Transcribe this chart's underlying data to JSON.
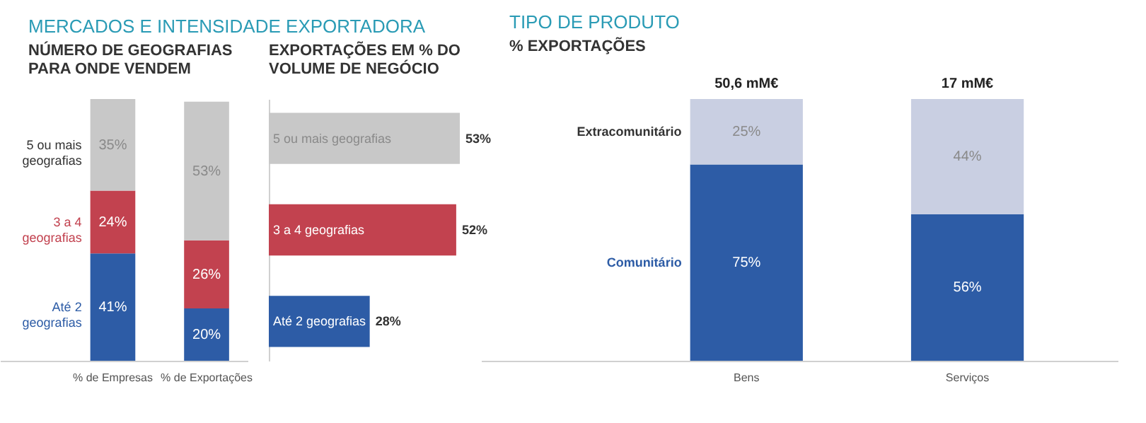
{
  "chart_data": [
    {
      "type": "bar",
      "title": "MERCADOS E INTENSIDADE EXPORTADORA",
      "subtitle": "NÚMERO DE GEOGRAFIAS PARA ONDE VENDEM",
      "categories": [
        "% de Empresas",
        "% de Exportações"
      ],
      "stacked": true,
      "series": [
        {
          "name": "Até 2 geografias",
          "color": "#2d5ca6",
          "values": [
            41,
            20
          ],
          "value_labels": [
            "41%",
            "20%"
          ]
        },
        {
          "name": "3 a 4 geografias",
          "color": "#c2424f",
          "values": [
            24,
            26
          ],
          "value_labels": [
            "24%",
            "26%"
          ]
        },
        {
          "name": "5 ou mais geografias",
          "color": "#c8c8c8",
          "values": [
            35,
            53
          ],
          "value_labels": [
            "35%",
            "53%"
          ]
        }
      ]
    },
    {
      "type": "bar",
      "orientation": "horizontal",
      "title": "EXPORTAÇÕES EM % DO VOLUME DE NEGÓCIO",
      "categories": [
        "5 ou mais geografias",
        "3 a 4 geografias",
        "Até 2 geografias"
      ],
      "values": [
        53,
        52,
        28
      ],
      "colors": [
        "#c8c8c8",
        "#c2424f",
        "#2d5ca6"
      ],
      "value_labels": [
        "53%",
        "52%",
        "28%"
      ]
    },
    {
      "type": "bar",
      "title": "TIPO DE PRODUTO",
      "subtitle": "% EXPORTAÇÕES",
      "categories": [
        "Bens",
        "Serviços"
      ],
      "stacked": true,
      "annotations": [
        {
          "text": "50,6 mM€",
          "x": "Bens",
          "y": 100
        },
        {
          "text": "17 mM€",
          "x": "Serviços",
          "y": 100
        }
      ],
      "series": [
        {
          "name": "Comunitário",
          "color": "#2d5ca6",
          "values": [
            75,
            56
          ],
          "value_labels": [
            "75%",
            "56%"
          ]
        },
        {
          "name": "Extracomunitário",
          "color": "#c9cfe2",
          "values": [
            25,
            44
          ],
          "value_labels": [
            "25%",
            "44%"
          ]
        }
      ]
    }
  ]
}
